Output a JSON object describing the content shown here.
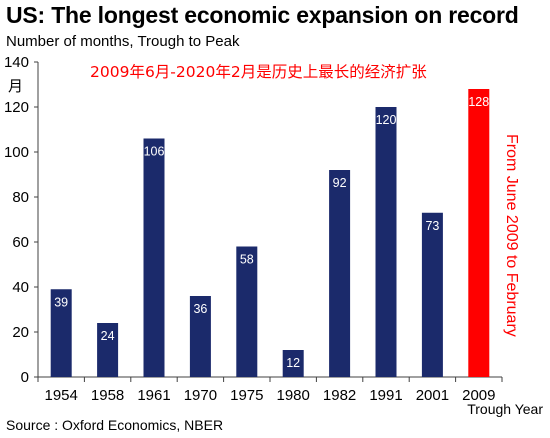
{
  "title": "US: The longest economic expansion on record",
  "subtitle": "Number of months, Trough to Peak",
  "source": "Source : Oxford Economics, NBER",
  "colors": {
    "bar": "#1b2a6b",
    "highlight": "#ff0000",
    "axis": "#404040",
    "background": "#ffffff"
  },
  "chart_data": {
    "type": "bar",
    "categories": [
      "1954",
      "1958",
      "1961",
      "1970",
      "1975",
      "1980",
      "1982",
      "1991",
      "2001",
      "2009"
    ],
    "values": [
      39,
      24,
      106,
      36,
      58,
      12,
      92,
      120,
      73,
      128
    ],
    "data_labels": [
      "39",
      "24",
      "106",
      "36",
      "58",
      "12",
      "92",
      "120",
      "73",
      "128"
    ],
    "highlight_category": "2009",
    "ylim": [
      0,
      140
    ],
    "yticks": [
      0,
      20,
      40,
      60,
      80,
      100,
      120,
      140
    ],
    "ytick_unit_label": "月",
    "xlabel": "Trough Year",
    "grid": false,
    "annotations": [
      {
        "text": "2009年6月-2020年2月是历史上最长的经济扩张",
        "color": "#ff0000"
      },
      {
        "text": "From June 2009 to February",
        "color": "#ff0000",
        "orientation": "vertical"
      }
    ]
  }
}
